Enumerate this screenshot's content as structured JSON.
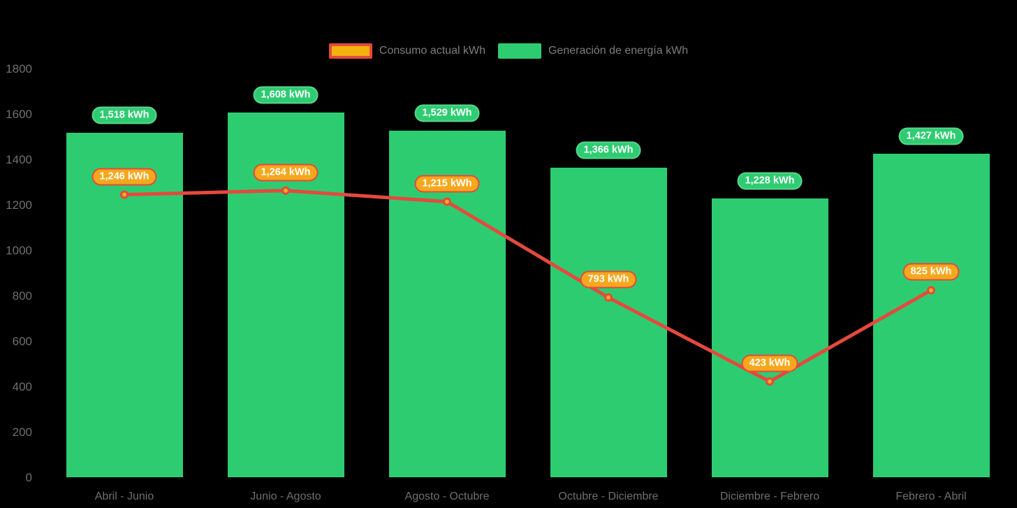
{
  "chart_data": {
    "type": "bar",
    "categories": [
      "Abril - Junio",
      "Junio - Agosto",
      "Agosto - Octubre",
      "Octubre - Diciembre",
      "Diciembre - Febrero",
      "Febrero - Abril"
    ],
    "series": [
      {
        "name": "Generación de energía kWh",
        "type": "bar",
        "values": [
          1518,
          1608,
          1529,
          1366,
          1228,
          1427
        ],
        "labels": [
          "1,518 kWh",
          "1,608 kWh",
          "1,529 kWh",
          "1,366 kWh",
          "1,228 kWh",
          "1,427 kWh"
        ],
        "color": "#2ecc71",
        "badge_fill": "#2ecc71",
        "badge_border": "#57d68d"
      },
      {
        "name": "Consumo actual kWh",
        "type": "line",
        "values": [
          1246,
          1264,
          1215,
          793,
          423,
          825
        ],
        "labels": [
          "1,246 kWh",
          "1,264 kWh",
          "1,215 kWh",
          "793 kWh",
          "423 kWh",
          "825 kWh"
        ],
        "color": "#e5493d",
        "marker_fill": "#f4ab19",
        "badge_fill": "#f5a81c",
        "badge_border": "#e5493d"
      }
    ],
    "ylim": [
      0,
      1800
    ],
    "yticks": [
      0,
      200,
      400,
      600,
      800,
      1000,
      1200,
      1400,
      1600,
      1800
    ],
    "grid": false,
    "legend_position": "top-center",
    "background": "#000000"
  },
  "legend": {
    "items": [
      {
        "label": "Consumo actual kWh",
        "swatch_fill": "#f2b30c",
        "swatch_border": "#e5493d"
      },
      {
        "label": "Generación de energía kWh",
        "swatch_fill": "#2ecc71",
        "swatch_border": ""
      }
    ]
  }
}
